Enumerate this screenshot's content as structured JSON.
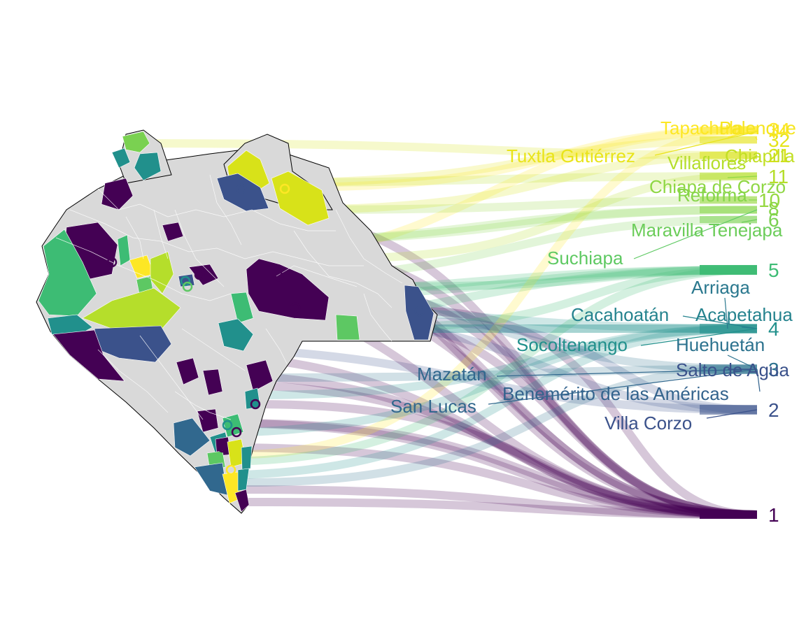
{
  "chart_data": {
    "type": "choropleth-bump",
    "palette": [
      "#440154",
      "#3b528b",
      "#21908c",
      "#5dc863",
      "#fde725"
    ],
    "counts": [
      {
        "label": "1",
        "value": 1,
        "color": "#440154"
      },
      {
        "label": "2",
        "value": 2,
        "color": "#3b528b"
      },
      {
        "label": "3",
        "value": 3,
        "color": "#2c728e"
      },
      {
        "label": "4",
        "value": 4,
        "color": "#21908c"
      },
      {
        "label": "5",
        "value": 5,
        "color": "#3dbc74"
      },
      {
        "label": "6",
        "value": 6,
        "color": "#7ad151"
      },
      {
        "label": "8",
        "value": 8,
        "color": "#86d549"
      },
      {
        "label": "10",
        "value": 10,
        "color": "#95d840"
      },
      {
        "label": "11",
        "value": 11,
        "color": "#b5de2b"
      },
      {
        "label": "21",
        "value": 21,
        "color": "#d8e219"
      },
      {
        "label": "32",
        "value": 32,
        "color": "#e5e419"
      },
      {
        "label": "34",
        "value": 34,
        "color": "#fde725"
      }
    ],
    "municipalities": [
      {
        "name": "Tapachula",
        "value": 34,
        "color": "#fde725"
      },
      {
        "name": "Palenque",
        "value": 32,
        "color": "#f5e51f"
      },
      {
        "name": "Tuxtla Gutiérrez",
        "value": 34,
        "color": "#e9e419"
      },
      {
        "name": "Chiapilla",
        "value": 21,
        "color": "#c2df23"
      },
      {
        "name": "Villaflores",
        "value": 21,
        "color": "#b5de2b"
      },
      {
        "name": "Chiapa de Corzo",
        "value": 11,
        "color": "#8fd744"
      },
      {
        "name": "Reforma",
        "value": 10,
        "color": "#86d549"
      },
      {
        "name": "Maravilla Tenejapa",
        "value": 6,
        "color": "#6ccd5a"
      },
      {
        "name": "Suchiapa",
        "value": 8,
        "color": "#5ec962"
      },
      {
        "name": "Arriaga",
        "value": 4,
        "color": "#2a788e"
      },
      {
        "name": "Cacahoatán",
        "value": 4,
        "color": "#25838e"
      },
      {
        "name": "Acapetahua",
        "value": 4,
        "color": "#25838e"
      },
      {
        "name": "Socoltenango",
        "value": 4,
        "color": "#21908c"
      },
      {
        "name": "Huehuetán",
        "value": 3,
        "color": "#2c728e"
      },
      {
        "name": "Mazatán",
        "value": 3,
        "color": "#31688e"
      },
      {
        "name": "Salto de Agua",
        "value": 3,
        "color": "#3b528b"
      },
      {
        "name": "Benemérito de las Américas",
        "value": 3,
        "color": "#33638d"
      },
      {
        "name": "San Lucas",
        "value": 3,
        "color": "#31688e"
      },
      {
        "name": "Villa Corzo",
        "value": 2,
        "color": "#3b528b"
      }
    ]
  }
}
